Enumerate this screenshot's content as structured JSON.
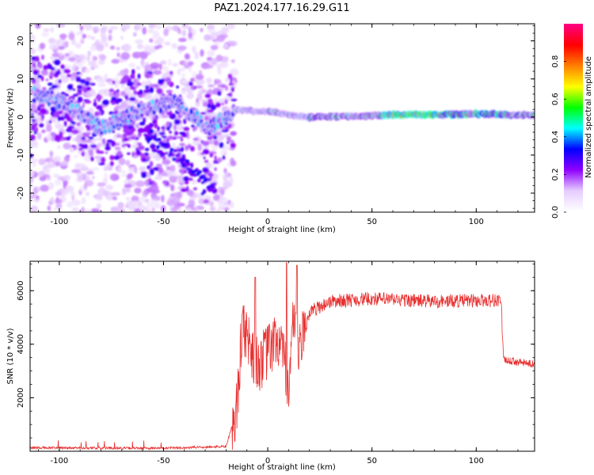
{
  "chart_data": [
    {
      "type": "heatmap",
      "title": "PAZ1.2024.177.16.29.G11",
      "xlabel": "Height of straight line (km)",
      "ylabel": "Frequency (Hz)",
      "xlim": [
        -114,
        128
      ],
      "ylim": [
        -25,
        24.5
      ],
      "x_ticks": [
        "-100",
        "-50",
        "0",
        "50",
        "100"
      ],
      "y_ticks": [
        "-20",
        "-10",
        "0",
        "10",
        "20"
      ],
      "colorbar": {
        "label": "Normalized spectral amplitude",
        "range": [
          0.0,
          1.0
        ],
        "ticks": [
          "0.0",
          "0.2",
          "0.4",
          "0.6",
          "0.8"
        ],
        "colors": [
          "#ffffff",
          "#e6ccff",
          "#8f00ff",
          "#0000ff",
          "#00ffff",
          "#00ff00",
          "#ffff00",
          "#ff8000",
          "#ff0000",
          "#ff0080"
        ]
      },
      "dominant_ridge": {
        "description_points": [
          [
            -112,
            6.5
          ],
          [
            -100,
            4
          ],
          [
            -90,
            1
          ],
          [
            -80,
            -3
          ],
          [
            -60,
            2
          ],
          [
            -45,
            4
          ],
          [
            -35,
            0
          ],
          [
            -28,
            -3
          ],
          [
            -20,
            0
          ],
          [
            -15,
            2
          ],
          [
            -5,
            1.5
          ],
          [
            0,
            1.5
          ],
          [
            10,
            0.5
          ],
          [
            20,
            0
          ],
          [
            40,
            0.2
          ],
          [
            60,
            0.6
          ],
          [
            80,
            0.6
          ],
          [
            100,
            0.8
          ],
          [
            128,
            0.5
          ]
        ],
        "peak_amplitude_region_km": [
          55,
          80
        ]
      },
      "legend": "colorbar-right",
      "grid": false
    },
    {
      "type": "line",
      "title": "",
      "xlabel": "Height of straight line (km)",
      "ylabel": "SNR (10 * v/v)",
      "xlim": [
        -114,
        128
      ],
      "ylim": [
        0,
        7100
      ],
      "x_ticks": [
        "-100",
        "-50",
        "0",
        "50",
        "100"
      ],
      "y_ticks": [
        "2000",
        "4000",
        "6000"
      ],
      "color": "#e83030",
      "series_envelope": [
        {
          "x": -114,
          "y": 130
        },
        {
          "x": -50,
          "y": 110
        },
        {
          "x": -20,
          "y": 180
        },
        {
          "x": -15,
          "y": 1500
        },
        {
          "x": -12,
          "y": 4800
        },
        {
          "x": -5,
          "y": 3200
        },
        {
          "x": 0,
          "y": 3700
        },
        {
          "x": 5,
          "y": 4200
        },
        {
          "x": 10,
          "y": 2500
        },
        {
          "x": 12,
          "y": 4600
        },
        {
          "x": 15,
          "y": 3700
        },
        {
          "x": 20,
          "y": 5200
        },
        {
          "x": 30,
          "y": 5600
        },
        {
          "x": 50,
          "y": 5700
        },
        {
          "x": 80,
          "y": 5600
        },
        {
          "x": 112,
          "y": 5650
        },
        {
          "x": 113,
          "y": 3400
        },
        {
          "x": 128,
          "y": 3250
        }
      ],
      "spikes": [
        {
          "x": -6,
          "y": 6500
        },
        {
          "x": 9,
          "y": 7050
        },
        {
          "x": 14,
          "y": 6950
        }
      ],
      "legend": "none",
      "grid": false
    }
  ]
}
